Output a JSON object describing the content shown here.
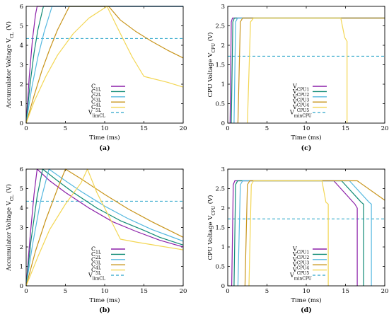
{
  "chart_data": [
    {
      "id": "a",
      "panel_label": "(a)",
      "type": "line",
      "xlabel": "Time (ms)",
      "ylabel_main": "Accumulator Voltage V",
      "ylabel_sub": "CL",
      "ylabel_unit": " (V)",
      "xlim": [
        0,
        20
      ],
      "ylim": [
        0,
        6
      ],
      "xticks": [
        0,
        5,
        10,
        15,
        20
      ],
      "yticks": [
        0,
        1,
        2,
        3,
        4,
        5,
        6
      ],
      "legend_position": "bottom-center",
      "threshold": {
        "name_main": "V",
        "name_sub": "limCL",
        "value": 4.35,
        "color": "#2ba5c9"
      },
      "series": [
        {
          "name_main": "C",
          "name_sub": "1L",
          "color": "#8b1fa8",
          "x": [
            0,
            0.4,
            0.8,
            1.2,
            1.4,
            20
          ],
          "y": [
            0,
            2.4,
            4.3,
            5.6,
            6,
            6
          ]
        },
        {
          "name_main": "C",
          "name_sub": "2L",
          "color": "#0f8a74",
          "x": [
            0,
            0.5,
            1,
            1.5,
            2.2,
            20
          ],
          "y": [
            0,
            2.0,
            3.6,
            4.8,
            6,
            6
          ]
        },
        {
          "name_main": "C",
          "name_sub": "3L",
          "color": "#56b8e0",
          "x": [
            0,
            0.7,
            1.5,
            2.3,
            3.3,
            20
          ],
          "y": [
            0,
            1.8,
            3.4,
            4.7,
            6,
            6
          ]
        },
        {
          "name_main": "C",
          "name_sub": "4L",
          "color": "#c8941a",
          "x": [
            0,
            1,
            2,
            3,
            4,
            5.5,
            10.5,
            12,
            14,
            16,
            18,
            20
          ],
          "y": [
            0,
            1.4,
            2.7,
            3.8,
            4.8,
            6,
            6,
            5.3,
            4.7,
            4.2,
            3.75,
            3.35
          ]
        },
        {
          "name_main": "C",
          "name_sub": "5L",
          "color": "#f3d653",
          "x": [
            0,
            1,
            2.5,
            4,
            6,
            8,
            10.3,
            12,
            13.5,
            15,
            18,
            20
          ],
          "y": [
            0,
            1.1,
            2.4,
            3.5,
            4.6,
            5.4,
            6,
            4.6,
            3.4,
            2.4,
            2.1,
            1.85
          ]
        }
      ]
    },
    {
      "id": "c",
      "panel_label": "(c)",
      "type": "line",
      "xlabel": "Time (ms)",
      "ylabel_main": "CPU Voltage V",
      "ylabel_sub": "CPU",
      "ylabel_unit": " (V)",
      "xlim": [
        0,
        20
      ],
      "ylim": [
        0,
        3
      ],
      "xticks": [
        0,
        5,
        10,
        15,
        20
      ],
      "yticks": [
        0,
        0.5,
        1,
        1.5,
        2,
        2.5,
        3
      ],
      "legend_position": "bottom-center",
      "threshold": {
        "name_main": "V",
        "name_sub": "minCPU",
        "value": 1.72,
        "color": "#2ba5c9"
      },
      "series": [
        {
          "name_main": "V",
          "name_sub": "CPU1",
          "color": "#8b1fa8",
          "x": [
            0.3,
            0.45,
            0.6,
            20
          ],
          "y": [
            0,
            2.6,
            2.7,
            2.7
          ]
        },
        {
          "name_main": "V",
          "name_sub": "CPU2",
          "color": "#0f8a74",
          "x": [
            0.45,
            0.65,
            0.85,
            20
          ],
          "y": [
            0,
            2.6,
            2.7,
            2.7
          ]
        },
        {
          "name_main": "V",
          "name_sub": "CPU3",
          "color": "#56b8e0",
          "x": [
            0.8,
            1.0,
            1.25,
            20
          ],
          "y": [
            0,
            2.6,
            2.7,
            2.7
          ]
        },
        {
          "name_main": "V",
          "name_sub": "CPU4",
          "color": "#c8941a",
          "x": [
            1.3,
            1.6,
            1.9,
            20
          ],
          "y": [
            0,
            2.6,
            2.7,
            2.7
          ]
        },
        {
          "name_main": "V",
          "name_sub": "CPU5",
          "color": "#f3d653",
          "x": [
            2.5,
            2.9,
            3.3,
            14.4,
            14.9,
            15.2,
            15.2
          ],
          "y": [
            0,
            2.6,
            2.7,
            2.7,
            2.2,
            2.1,
            0
          ]
        }
      ]
    },
    {
      "id": "b",
      "panel_label": "(b)",
      "type": "line",
      "xlabel": "Time (ms)",
      "ylabel_main": "Accumulator Voltage V",
      "ylabel_sub": "CL",
      "ylabel_unit": " (V)",
      "xlim": [
        0,
        20
      ],
      "ylim": [
        0,
        6
      ],
      "xticks": [
        0,
        5,
        10,
        15,
        20
      ],
      "yticks": [
        0,
        1,
        2,
        3,
        4,
        5,
        6
      ],
      "legend_position": "bottom-center",
      "threshold": {
        "name_main": "V",
        "name_sub": "limCL",
        "value": 4.35,
        "color": "#2ba5c9"
      },
      "series": [
        {
          "name_main": "C",
          "name_sub": "1L",
          "color": "#8b1fa8",
          "x": [
            0,
            0.5,
            1,
            1.4,
            3,
            5,
            8,
            11,
            14,
            17,
            20
          ],
          "y": [
            0,
            2.5,
            4.7,
            6,
            5.4,
            4.8,
            4.0,
            3.3,
            2.8,
            2.35,
            2.0
          ]
        },
        {
          "name_main": "C",
          "name_sub": "2L",
          "color": "#0f8a74",
          "x": [
            0,
            0.6,
            1.4,
            2.1,
            4,
            6,
            9,
            12,
            15,
            17,
            20
          ],
          "y": [
            0,
            2.3,
            4.6,
            6,
            5.4,
            4.8,
            4.0,
            3.35,
            2.85,
            2.5,
            2.1
          ]
        },
        {
          "name_main": "C",
          "name_sub": "3L",
          "color": "#56b8e0",
          "x": [
            0,
            0.8,
            1.8,
            2.9,
            5,
            7,
            10,
            13,
            16,
            18,
            20
          ],
          "y": [
            0,
            2.1,
            4.3,
            6,
            5.4,
            4.85,
            4.1,
            3.45,
            2.9,
            2.6,
            2.3
          ]
        },
        {
          "name_main": "C",
          "name_sub": "4L",
          "color": "#c8941a",
          "x": [
            0,
            1.2,
            2.5,
            4,
            5,
            7,
            10,
            13,
            16,
            18,
            20
          ],
          "y": [
            0,
            1.8,
            3.4,
            5.0,
            6,
            5.5,
            4.7,
            3.95,
            3.3,
            2.9,
            2.5
          ]
        },
        {
          "name_main": "C",
          "name_sub": "5L",
          "color": "#f3d653",
          "x": [
            0,
            1.5,
            3,
            5,
            7,
            7.8,
            9,
            10.5,
            12,
            14,
            17,
            20
          ],
          "y": [
            0,
            1.5,
            2.9,
            4.2,
            5.3,
            6,
            4.8,
            3.6,
            2.4,
            2.25,
            2.05,
            1.85
          ]
        }
      ]
    },
    {
      "id": "d",
      "panel_label": "(d)",
      "type": "line",
      "xlabel": "Time (ms)",
      "ylabel_main": "CPU Voltage V",
      "ylabel_sub": "CPU",
      "ylabel_unit": " (V)",
      "xlim": [
        0,
        20
      ],
      "ylim": [
        0,
        3
      ],
      "xticks": [
        0,
        5,
        10,
        15,
        20
      ],
      "yticks": [
        0,
        0.5,
        1,
        1.5,
        2,
        2.5,
        3
      ],
      "legend_position": "bottom-center",
      "threshold": {
        "name_main": "V",
        "name_sub": "minCPU",
        "value": 1.72,
        "color": "#2ba5c9"
      },
      "series": [
        {
          "name_main": "V",
          "name_sub": "CPU1",
          "color": "#8b1fa8",
          "x": [
            0.5,
            0.7,
            0.9,
            13.5,
            16.2,
            16.5,
            16.5
          ],
          "y": [
            0,
            2.6,
            2.7,
            2.7,
            2.1,
            2.0,
            0
          ]
        },
        {
          "name_main": "V",
          "name_sub": "CPU2",
          "color": "#0f8a74",
          "x": [
            0.8,
            1.0,
            1.25,
            14.5,
            17.0,
            17.3,
            17.3
          ],
          "y": [
            0,
            2.6,
            2.7,
            2.7,
            2.15,
            2.1,
            0
          ]
        },
        {
          "name_main": "V",
          "name_sub": "CPU3",
          "color": "#56b8e0",
          "x": [
            1.3,
            1.6,
            1.9,
            15.5,
            18.0,
            18.3,
            18.3
          ],
          "y": [
            0,
            2.6,
            2.7,
            2.7,
            2.15,
            2.1,
            0
          ]
        },
        {
          "name_main": "V",
          "name_sub": "CPU4",
          "color": "#c8941a",
          "x": [
            2.2,
            2.5,
            2.8,
            16.5,
            20
          ],
          "y": [
            0,
            2.6,
            2.7,
            2.7,
            2.2
          ]
        },
        {
          "name_main": "V",
          "name_sub": "CPU5",
          "color": "#f3d653",
          "x": [
            2.7,
            3.0,
            3.3,
            12.0,
            12.5,
            12.8,
            12.8
          ],
          "y": [
            0,
            2.6,
            2.7,
            2.7,
            2.15,
            2.1,
            0
          ]
        }
      ]
    }
  ]
}
